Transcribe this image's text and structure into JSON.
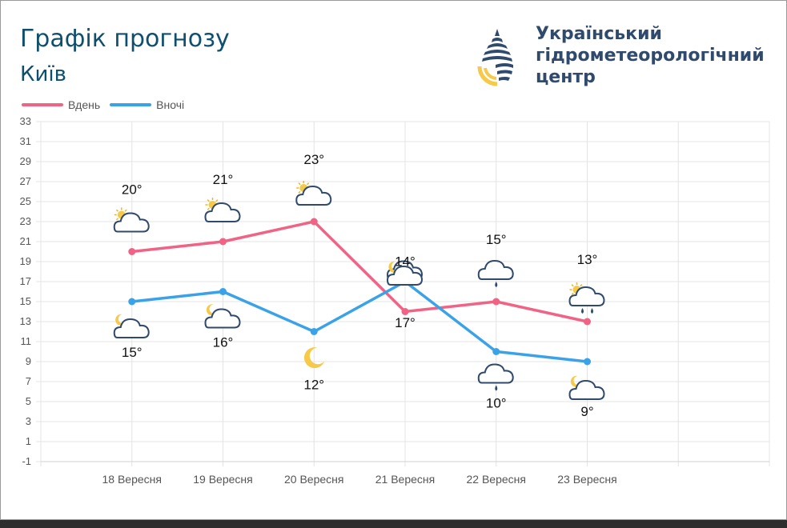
{
  "header": {
    "title": "Графік прогнозу",
    "city": "Київ",
    "org_line1": "Український",
    "org_line2": "гідрометеорологічний",
    "org_line3": "центр"
  },
  "colors": {
    "day": "#f06384",
    "night": "#3aa2e8",
    "title": "#0f4f6e",
    "org": "#2f4a6d",
    "logo_yellow": "#f7c948",
    "logo_navy": "#2f4a6d"
  },
  "logo": {
    "icon": "drop-logo-icon"
  },
  "chart_data": {
    "type": "line",
    "categories": [
      "18 Вересня",
      "19 Вересня",
      "20 Вересня",
      "21 Вересня",
      "22 Вересня",
      "23 Вересня"
    ],
    "series": [
      {
        "name": "Вдень",
        "values": [
          20,
          21,
          23,
          14,
          15,
          13
        ],
        "labels": [
          "20°",
          "21°",
          "23°",
          "14°",
          "15°",
          "13°"
        ],
        "icons": [
          "sun-cloud-icon",
          "sun-cloud-icon",
          "sun-cloud-icon",
          "cloud-icon",
          "cloud-rain-icon",
          "sun-cloud-rain-icon"
        ]
      },
      {
        "name": "Вночі",
        "values": [
          15,
          16,
          12,
          17,
          10,
          9
        ],
        "labels": [
          "15°",
          "16°",
          "12°",
          "17°",
          "10°",
          "9°"
        ],
        "icons": [
          "moon-cloud-icon",
          "moon-cloud-icon",
          "moon-icon",
          "moon-cloud-icon",
          "cloud-rain-icon",
          "moon-cloud-icon"
        ]
      }
    ],
    "ylim": [
      -1,
      33
    ],
    "yticks": [
      "-1",
      "1",
      "3",
      "5",
      "7",
      "9",
      "11",
      "13",
      "15",
      "17",
      "19",
      "21",
      "23",
      "25",
      "27",
      "29",
      "31",
      "33"
    ],
    "grid": true,
    "legend": "top-left"
  }
}
